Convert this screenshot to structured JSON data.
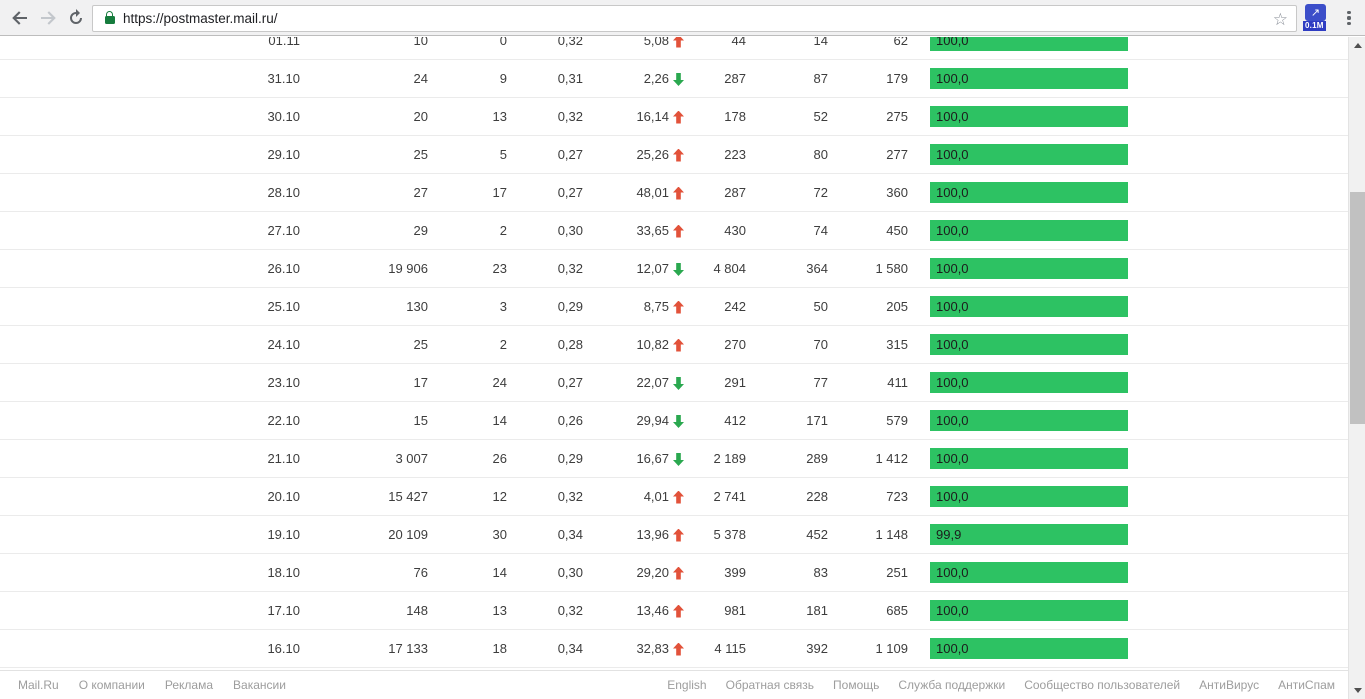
{
  "browser": {
    "url": "https://postmaster.mail.ru/",
    "extension_glyph": "↗",
    "extension_badge": "0.1M"
  },
  "table": {
    "bar_color": "#2dc263",
    "arrow_up_color": "#e2523a",
    "arrow_down_color": "#2aa84f",
    "rows": [
      {
        "date": "01.11",
        "c1": "10",
        "c2": "0",
        "c3": "0,32",
        "delta": "5,08",
        "dir": "up",
        "c5": "44",
        "c6": "14",
        "c7": "62",
        "bar_label": "100,0",
        "bar_value": 100.0
      },
      {
        "date": "31.10",
        "c1": "24",
        "c2": "9",
        "c3": "0,31",
        "delta": "2,26",
        "dir": "down",
        "c5": "287",
        "c6": "87",
        "c7": "179",
        "bar_label": "100,0",
        "bar_value": 100.0
      },
      {
        "date": "30.10",
        "c1": "20",
        "c2": "13",
        "c3": "0,32",
        "delta": "16,14",
        "dir": "up",
        "c5": "178",
        "c6": "52",
        "c7": "275",
        "bar_label": "100,0",
        "bar_value": 100.0
      },
      {
        "date": "29.10",
        "c1": "25",
        "c2": "5",
        "c3": "0,27",
        "delta": "25,26",
        "dir": "up",
        "c5": "223",
        "c6": "80",
        "c7": "277",
        "bar_label": "100,0",
        "bar_value": 100.0
      },
      {
        "date": "28.10",
        "c1": "27",
        "c2": "17",
        "c3": "0,27",
        "delta": "48,01",
        "dir": "up",
        "c5": "287",
        "c6": "72",
        "c7": "360",
        "bar_label": "100,0",
        "bar_value": 100.0
      },
      {
        "date": "27.10",
        "c1": "29",
        "c2": "2",
        "c3": "0,30",
        "delta": "33,65",
        "dir": "up",
        "c5": "430",
        "c6": "74",
        "c7": "450",
        "bar_label": "100,0",
        "bar_value": 100.0
      },
      {
        "date": "26.10",
        "c1": "19 906",
        "c2": "23",
        "c3": "0,32",
        "delta": "12,07",
        "dir": "down",
        "c5": "4 804",
        "c6": "364",
        "c7": "1 580",
        "bar_label": "100,0",
        "bar_value": 100.0
      },
      {
        "date": "25.10",
        "c1": "130",
        "c2": "3",
        "c3": "0,29",
        "delta": "8,75",
        "dir": "up",
        "c5": "242",
        "c6": "50",
        "c7": "205",
        "bar_label": "100,0",
        "bar_value": 100.0
      },
      {
        "date": "24.10",
        "c1": "25",
        "c2": "2",
        "c3": "0,28",
        "delta": "10,82",
        "dir": "up",
        "c5": "270",
        "c6": "70",
        "c7": "315",
        "bar_label": "100,0",
        "bar_value": 100.0
      },
      {
        "date": "23.10",
        "c1": "17",
        "c2": "24",
        "c3": "0,27",
        "delta": "22,07",
        "dir": "down",
        "c5": "291",
        "c6": "77",
        "c7": "411",
        "bar_label": "100,0",
        "bar_value": 100.0
      },
      {
        "date": "22.10",
        "c1": "15",
        "c2": "14",
        "c3": "0,26",
        "delta": "29,94",
        "dir": "down",
        "c5": "412",
        "c6": "171",
        "c7": "579",
        "bar_label": "100,0",
        "bar_value": 100.0
      },
      {
        "date": "21.10",
        "c1": "3 007",
        "c2": "26",
        "c3": "0,29",
        "delta": "16,67",
        "dir": "down",
        "c5": "2 189",
        "c6": "289",
        "c7": "1 412",
        "bar_label": "100,0",
        "bar_value": 100.0
      },
      {
        "date": "20.10",
        "c1": "15 427",
        "c2": "12",
        "c3": "0,32",
        "delta": "4,01",
        "dir": "up",
        "c5": "2 741",
        "c6": "228",
        "c7": "723",
        "bar_label": "100,0",
        "bar_value": 100.0
      },
      {
        "date": "19.10",
        "c1": "20 109",
        "c2": "30",
        "c3": "0,34",
        "delta": "13,96",
        "dir": "up",
        "c5": "5 378",
        "c6": "452",
        "c7": "1 148",
        "bar_label": "99,9",
        "bar_value": 99.9
      },
      {
        "date": "18.10",
        "c1": "76",
        "c2": "14",
        "c3": "0,30",
        "delta": "29,20",
        "dir": "up",
        "c5": "399",
        "c6": "83",
        "c7": "251",
        "bar_label": "100,0",
        "bar_value": 100.0
      },
      {
        "date": "17.10",
        "c1": "148",
        "c2": "13",
        "c3": "0,32",
        "delta": "13,46",
        "dir": "up",
        "c5": "981",
        "c6": "181",
        "c7": "685",
        "bar_label": "100,0",
        "bar_value": 100.0
      },
      {
        "date": "16.10",
        "c1": "17 133",
        "c2": "18",
        "c3": "0,34",
        "delta": "32,83",
        "dir": "up",
        "c5": "4 115",
        "c6": "392",
        "c7": "1 109",
        "bar_label": "100,0",
        "bar_value": 100.0
      }
    ]
  },
  "footer": {
    "left_links": [
      "Mail.Ru",
      "О компании",
      "Реклама",
      "Вакансии"
    ],
    "right_links": [
      "English",
      "Обратная связь",
      "Помощь",
      "Служба поддержки",
      "Сообщество пользователей",
      "АнтиВирус",
      "АнтиСпам"
    ]
  }
}
